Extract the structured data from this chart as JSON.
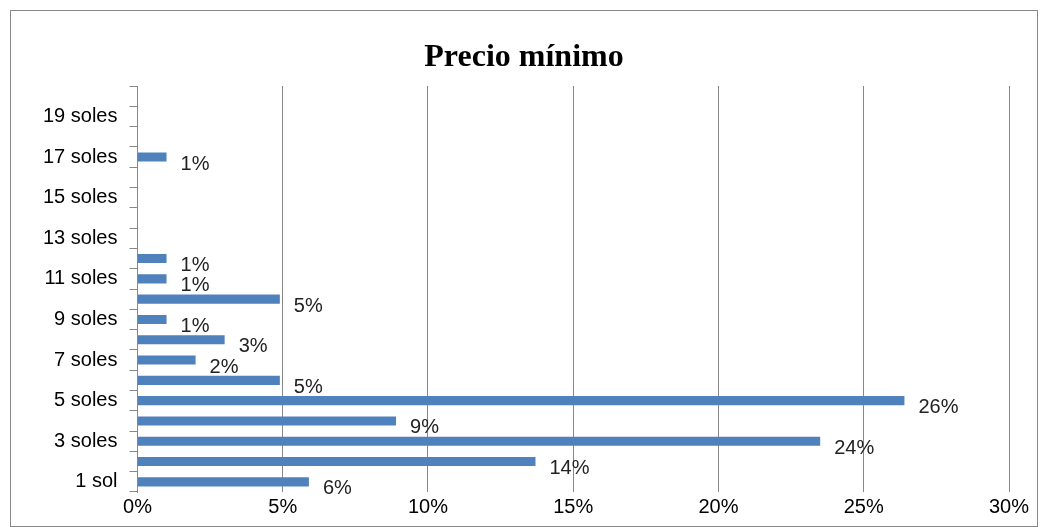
{
  "chart_data": {
    "type": "bar",
    "orientation": "horizontal",
    "title": "Precio mínimo",
    "categories": [
      null,
      "19 soles",
      null,
      "17 soles",
      null,
      "15 soles",
      null,
      "13 soles",
      null,
      "11 soles",
      null,
      "9 soles",
      null,
      "7 soles",
      null,
      "5 soles",
      null,
      "3 soles",
      null,
      "1 sol"
    ],
    "values": [
      null,
      null,
      null,
      1,
      null,
      null,
      null,
      null,
      1,
      1,
      4.9,
      1,
      3,
      2,
      4.9,
      26.4,
      8.9,
      23.5,
      13.7,
      5.9
    ],
    "value_labels": [
      null,
      null,
      null,
      "1%",
      null,
      null,
      null,
      null,
      "1%",
      "1%",
      "5%",
      "1%",
      "3%",
      "2%",
      "5%",
      "26%",
      "9%",
      "24%",
      "14%",
      "6%"
    ],
    "color": "#4f81bd",
    "xlim": [
      0,
      30
    ],
    "xticks": [
      {
        "value": 0,
        "label": "0%"
      },
      {
        "value": 5,
        "label": "5%"
      },
      {
        "value": 10,
        "label": "10%"
      },
      {
        "value": 15,
        "label": "15%"
      },
      {
        "value": 20,
        "label": "20%"
      },
      {
        "value": 25,
        "label": "25%"
      },
      {
        "value": 30,
        "label": "30%"
      }
    ],
    "grid": "x",
    "legend": false
  }
}
